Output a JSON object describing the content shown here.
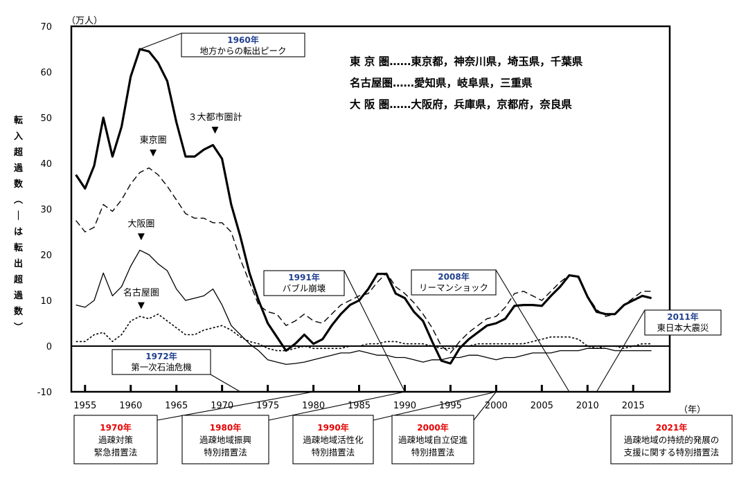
{
  "chart_data": {
    "type": "line",
    "title": "",
    "ylabel": "転入超過数（－は転出超過数）",
    "yunit": "（万人）",
    "xunit": "（年）",
    "xlim": [
      1953.5,
      2019
    ],
    "ylim": [
      -10,
      70
    ],
    "yticks": [
      -10,
      0,
      10,
      20,
      30,
      40,
      50,
      60,
      70
    ],
    "xticks": [
      1955,
      1960,
      1965,
      1970,
      1975,
      1980,
      1985,
      1990,
      1995,
      2000,
      2005,
      2010,
      2015
    ],
    "x": [
      1954,
      1955,
      1956,
      1957,
      1958,
      1959,
      1960,
      1961,
      1962,
      1963,
      1964,
      1965,
      1966,
      1967,
      1968,
      1969,
      1970,
      1971,
      1972,
      1973,
      1974,
      1975,
      1976,
      1977,
      1978,
      1979,
      1980,
      1981,
      1982,
      1983,
      1984,
      1985,
      1986,
      1987,
      1988,
      1989,
      1990,
      1991,
      1992,
      1993,
      1994,
      1995,
      1996,
      1997,
      1998,
      1999,
      2000,
      2001,
      2002,
      2003,
      2004,
      2005,
      2006,
      2007,
      2008,
      2009,
      2010,
      2011,
      2012,
      2013,
      2014,
      2015,
      2016,
      2017
    ],
    "series": [
      {
        "name": "３大都市圏計",
        "style": "thick",
        "values": [
          37.5,
          34.5,
          39.5,
          50,
          41.5,
          48,
          59,
          65,
          64.5,
          62,
          58,
          49,
          41.5,
          41.5,
          43,
          44,
          41,
          31,
          24,
          16,
          10,
          5,
          2,
          -1,
          0.5,
          2.5,
          0.5,
          1.5,
          4.5,
          7,
          9,
          10,
          12.5,
          15.8,
          15.8,
          11.5,
          10.5,
          7.5,
          5.5,
          1,
          -3.2,
          -3.8,
          -0.5,
          1.5,
          3,
          4.5,
          5,
          6,
          8.8,
          9,
          9,
          8.8,
          11,
          13,
          15.5,
          15.2,
          10.8,
          7.5,
          7,
          7,
          9,
          10,
          11,
          10.5
        ]
      },
      {
        "name": "東京圏",
        "style": "dashed",
        "values": [
          27.5,
          25,
          26,
          31,
          29.5,
          32,
          35.5,
          38,
          39,
          37.5,
          35,
          32,
          29,
          28,
          28,
          27,
          27,
          25,
          19,
          14,
          9,
          7.5,
          7,
          4.5,
          5.5,
          7,
          5.5,
          5,
          7,
          9,
          10,
          11,
          11.5,
          14,
          16,
          13,
          11.5,
          9.5,
          7,
          4,
          0,
          -1.5,
          1,
          3,
          4.5,
          6,
          6.5,
          8.5,
          11.5,
          12,
          11,
          10,
          12,
          14,
          15.5,
          15,
          11,
          8,
          6.5,
          7,
          9,
          10.5,
          12,
          12
        ]
      },
      {
        "name": "大阪圏",
        "style": "thin",
        "values": [
          9,
          8.5,
          10,
          16,
          11,
          13,
          17.5,
          21,
          20,
          18,
          16.5,
          12.5,
          10,
          10.5,
          11,
          12.5,
          9,
          4.5,
          2.5,
          0.5,
          -1,
          -3,
          -3.5,
          -4,
          -3.8,
          -3.5,
          -3,
          -2.5,
          -2,
          -1.5,
          -1.5,
          -1,
          -1.5,
          -2,
          -2,
          -2.5,
          -2.5,
          -3,
          -3.5,
          -3,
          -3,
          -2.5,
          -2.5,
          -2,
          -2,
          -2.5,
          -3,
          -2.5,
          -2.5,
          -2,
          -1.5,
          -1.5,
          -1.5,
          -1,
          -1,
          -1,
          -0.5,
          -0.5,
          -0.5,
          -1,
          -1,
          -1,
          -1,
          -1
        ]
      },
      {
        "name": "名古屋圏",
        "style": "dotted",
        "values": [
          1,
          1,
          2.5,
          3,
          1,
          2.5,
          5.5,
          6.5,
          6,
          7,
          5.5,
          4,
          2.5,
          2.5,
          3.5,
          4,
          4.5,
          3.5,
          2,
          1,
          0.5,
          -0.5,
          -1,
          -1,
          -0.5,
          0,
          -0.5,
          -0.5,
          -0.5,
          -0.5,
          0,
          0,
          0.5,
          0.5,
          1,
          1,
          0.5,
          0.5,
          0.5,
          0,
          -0.5,
          -0.5,
          0,
          0,
          0.5,
          0.5,
          0.5,
          0.5,
          0.5,
          0.5,
          1,
          1.5,
          2,
          2,
          2,
          1.5,
          0,
          -0.5,
          0,
          0,
          -0.5,
          0,
          0.5,
          0.5
        ]
      }
    ],
    "series_labels": [
      {
        "series": 0,
        "text": "３大都市圏計",
        "at_x": 1969
      },
      {
        "series": 1,
        "text": "東京圏",
        "at_x": 1962
      },
      {
        "series": 2,
        "text": "大阪圏",
        "at_x": 1961
      },
      {
        "series": 3,
        "text": "名古屋圏",
        "at_x": 1961
      }
    ],
    "legend": {
      "placement": "top-right",
      "rows": [
        "東 京 圏……東京都，神奈川県，埼玉県，千葉県",
        "名古屋圏……愛知県，岐阜県，三重県",
        "大 阪 圏……大阪府，兵庫県，京都府，奈良県"
      ]
    },
    "annotations": [
      {
        "year": "1960年",
        "text": "地方からの転出ピーク",
        "points_to": {
          "x": 1961,
          "y": 65
        }
      },
      {
        "year": "1972年",
        "text": "第一次石油危機",
        "points_to": {
          "x": 1972,
          "y": -10
        }
      },
      {
        "year": "1991年",
        "text": "バブル崩壊",
        "points_to": {
          "x": 1990,
          "y": -10
        }
      },
      {
        "year": "2008年",
        "text": "リーマンショック",
        "points_to": {
          "x": 2008,
          "y": -10
        }
      },
      {
        "year": "2011年",
        "text": "東日本大震災",
        "points_to": {
          "x": 2011,
          "y": -10
        }
      }
    ],
    "laws": [
      {
        "year": "1970年",
        "lines": [
          "過疎対策",
          "緊急措置法"
        ],
        "points_to_x": 1980
      },
      {
        "year": "1980年",
        "lines": [
          "過疎地域振興",
          "特別措置法"
        ],
        "points_to_x": 1990
      },
      {
        "year": "1990年",
        "lines": [
          "過疎地域活性化",
          "特別措置法"
        ],
        "points_to_x": 2000
      },
      {
        "year": "2000年",
        "lines": [
          "過疎地域自立促進",
          "特別措置法"
        ],
        "points_to_x": 2000
      },
      {
        "year": "2021年",
        "lines": [
          "過疎地域の持続的発展の",
          "支援に関する特別措置法"
        ],
        "points_to_x": null
      }
    ],
    "colors": {
      "axis": "#000000",
      "ann_year": "#1f3f8f",
      "law_year": "#e60000"
    }
  }
}
